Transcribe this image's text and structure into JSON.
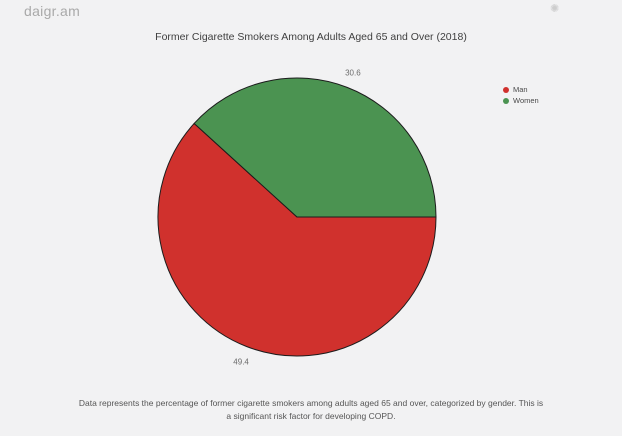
{
  "app": {
    "logo": "daigr.am",
    "icons": {
      "spinner": "✺"
    }
  },
  "colors": {
    "background": "#f2f2f3",
    "man": "#d0312d",
    "women": "#4b9351",
    "slice_stroke": "#1c1c1c"
  },
  "chart_data": {
    "type": "pie",
    "title": "Former Cigarette Smokers Among Adults Aged 65 and Over (2018)",
    "series": [
      {
        "name": "Man",
        "value": 49.4,
        "color": "#d0312d"
      },
      {
        "name": "Women",
        "value": 30.6,
        "color": "#4b9351"
      }
    ],
    "value_labels": [
      "49.4",
      "30.6"
    ],
    "legend_position": "right",
    "start_angle_deg": 0,
    "direction": "clockwise",
    "note": "Data represents the percentage of former cigarette smokers among adults aged 65 and over, categorized by gender. This is a significant risk factor for developing COPD."
  }
}
